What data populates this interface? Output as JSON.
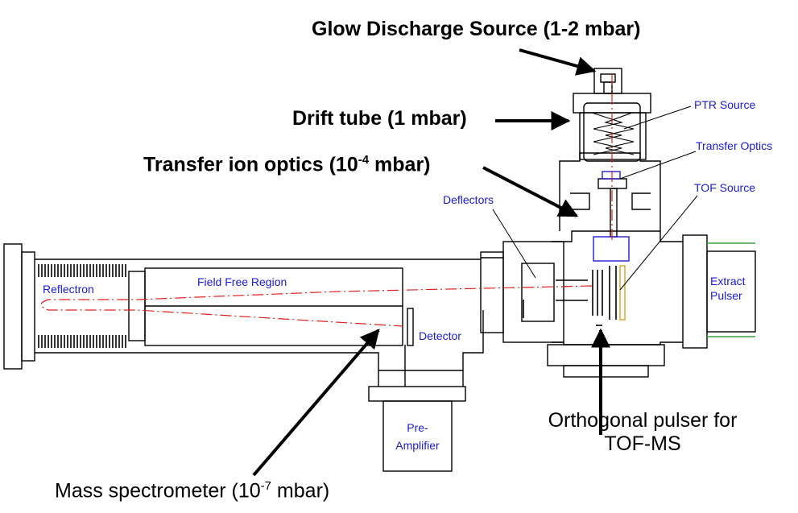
{
  "annotations": {
    "glow_discharge": "Glow Discharge Source  (1-2 mbar)",
    "drift_tube": "Drift tube (1 mbar)",
    "transfer_prefix": "Transfer ion optics (10",
    "transfer_exp": "-4",
    "transfer_suffix": " mbar)",
    "mass_prefix": "Mass spectrometer (10",
    "mass_exp": "-7",
    "mass_suffix": " mbar)",
    "orthogonal_line1": "Orthogonal pulser for",
    "orthogonal_line2": "TOF-MS"
  },
  "component_labels": {
    "ptr_source": "PTR Source",
    "transfer_optics": "Transfer Optics",
    "tof_source": "TOF Source",
    "deflectors": "Deflectors",
    "reflectron": "Reflectron",
    "field_free_region": "Field Free Region",
    "detector": "Detector",
    "extract_line1": "Extract",
    "extract_line2": "Pulser",
    "pre_line1": "Pre-",
    "pre_line2": "Amplifier"
  },
  "colors": {
    "outline": "#000000",
    "component_label": "#1a1ad4",
    "ion_path": "#e02020",
    "source_blue": "#2020d0",
    "flange_green": "#3aa03a",
    "tof_gold": "#d8a020"
  }
}
